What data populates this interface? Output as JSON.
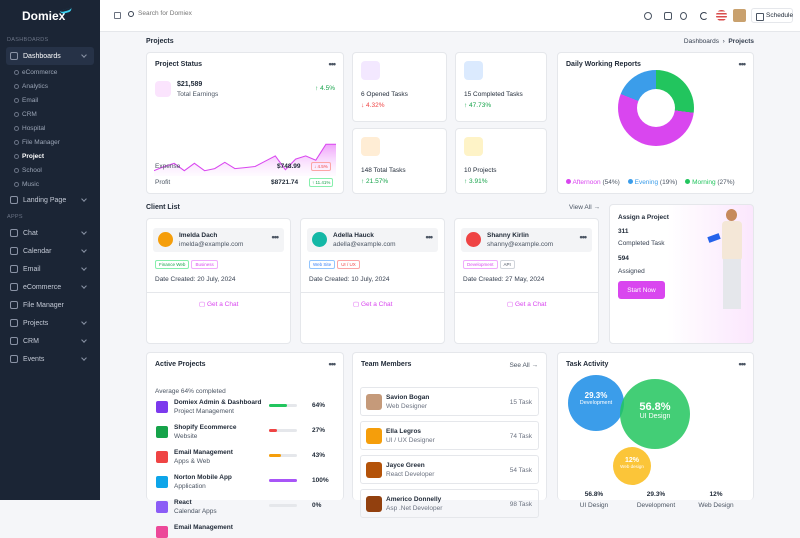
{
  "brand": "Domiex",
  "sidebar": {
    "sec1": "DASHBOARDS",
    "dashboards": "Dashboards",
    "subs": [
      "eCommerce",
      "Analytics",
      "Email",
      "CRM",
      "Hospital",
      "File Manager",
      "Project",
      "School",
      "Music"
    ],
    "landing": "Landing Page",
    "sec2": "APPS",
    "apps": [
      "Chat",
      "Calendar",
      "Email",
      "eCommerce",
      "File Manager",
      "Projects",
      "CRM",
      "Events"
    ]
  },
  "topbar": {
    "search_placeholder": "Search for Domiex",
    "schedule": "Schedule"
  },
  "page": {
    "title": "Projects",
    "bc1": "Dashboards",
    "bc2": "Projects"
  },
  "project_status": {
    "title": "Project Status",
    "earnings": "$21,589",
    "earnings_label": "Total Earnings",
    "change": "↑ 4.5%",
    "expense_label": "Expense",
    "expense": "$748.99",
    "expense_badge": "↓ 4.5%",
    "profit_label": "Profit",
    "profit": "$8721.74",
    "profit_badge": "↑ 11.41%"
  },
  "chart_data": {
    "type": "area",
    "values": [
      31,
      27,
      24,
      31,
      24,
      31,
      29,
      23,
      29,
      28,
      27,
      22,
      17,
      30,
      20,
      17,
      21,
      6,
      6
    ]
  },
  "stats": [
    {
      "label": "6 Opened Tasks",
      "change": "↓ 4.32%"
    },
    {
      "label": "15 Completed Tasks",
      "change": "↑ 47.73%"
    },
    {
      "label": "148 Total Tasks",
      "change": "↑ 21.57%"
    },
    {
      "label": "10 Projects",
      "change": "↑ 3.91%"
    }
  ],
  "daily": {
    "title": "Daily Working Reports",
    "afternoon": "Afternoon",
    "afternoon_pct": "(54%)",
    "evening": "Evening",
    "evening_pct": "(19%)",
    "morning": "Morning",
    "morning_pct": "(27%)",
    "colors": {
      "afternoon": "#d946ef",
      "evening": "#3b9dea",
      "morning": "#22c55e"
    }
  },
  "client_list": {
    "title": "Client List",
    "view_all": "View All →",
    "date_label": "Date Created:",
    "chat": "Get a Chat",
    "clients": [
      {
        "name": "Imelda Dach",
        "email": "imelda@example.com",
        "tags": [
          "Finance Web",
          "Business"
        ],
        "date": "20 July, 2024"
      },
      {
        "name": "Adella Hauck",
        "email": "adella@example.com",
        "tags": [
          "Web Site",
          "UI / UX"
        ],
        "date": "10 July, 2024"
      },
      {
        "name": "Shanny Kirlin",
        "email": "shanny@example.com",
        "tags": [
          "Development",
          "API"
        ],
        "date": "27 May, 2024"
      }
    ]
  },
  "assign": {
    "title": "Assign a Project",
    "count1": "311",
    "label1": "Completed Task",
    "count2": "594",
    "label2": "Assigned",
    "btn": "Start Now"
  },
  "active_projects": {
    "title": "Active Projects",
    "avg": "Average 64% completed",
    "items": [
      {
        "name": "Domiex Admin & Dashboard",
        "sub": "Project Management",
        "pct": "64%",
        "val": 0.64,
        "color": "#22c55e"
      },
      {
        "name": "Shopify Ecommerce",
        "sub": "Website",
        "pct": "27%",
        "val": 0.27,
        "color": "#ef4444"
      },
      {
        "name": "Email Management",
        "sub": "Apps & Web",
        "pct": "43%",
        "val": 0.43,
        "color": "#f59e0b"
      },
      {
        "name": "Norton Mobile App",
        "sub": "Application",
        "pct": "100%",
        "val": 1.0,
        "color": "#a855f7"
      },
      {
        "name": "React",
        "sub": "Calendar Apps",
        "pct": "0%",
        "val": 0,
        "color": "#3b82f6"
      },
      {
        "name": "Email Management",
        "sub": "",
        "pct": "",
        "val": 0,
        "color": "#3b82f6"
      }
    ]
  },
  "team": {
    "title": "Team Members",
    "see_all": "See All →",
    "members": [
      {
        "name": "Savion Bogan",
        "role": "Web Designer",
        "tasks": "15 Task"
      },
      {
        "name": "Ella Legros",
        "role": "UI / UX Designer",
        "tasks": "74 Task"
      },
      {
        "name": "Jayce Green",
        "role": "React Developer",
        "tasks": "54 Task"
      },
      {
        "name": "Americo Donnelly",
        "role": "Asp .Net Developer",
        "tasks": "98 Task"
      }
    ]
  },
  "task_activity": {
    "title": "Task Activity",
    "bubbles": [
      {
        "pct": "29.3%",
        "label": "Development"
      },
      {
        "pct": "56.8%",
        "label": "UI Design"
      },
      {
        "pct": "12%",
        "label": "Web design"
      }
    ],
    "stats": [
      {
        "pct": "56.8%",
        "label": "UI Design"
      },
      {
        "pct": "29.3%",
        "label": "Development"
      },
      {
        "pct": "12%",
        "label": "Web Design"
      }
    ]
  }
}
